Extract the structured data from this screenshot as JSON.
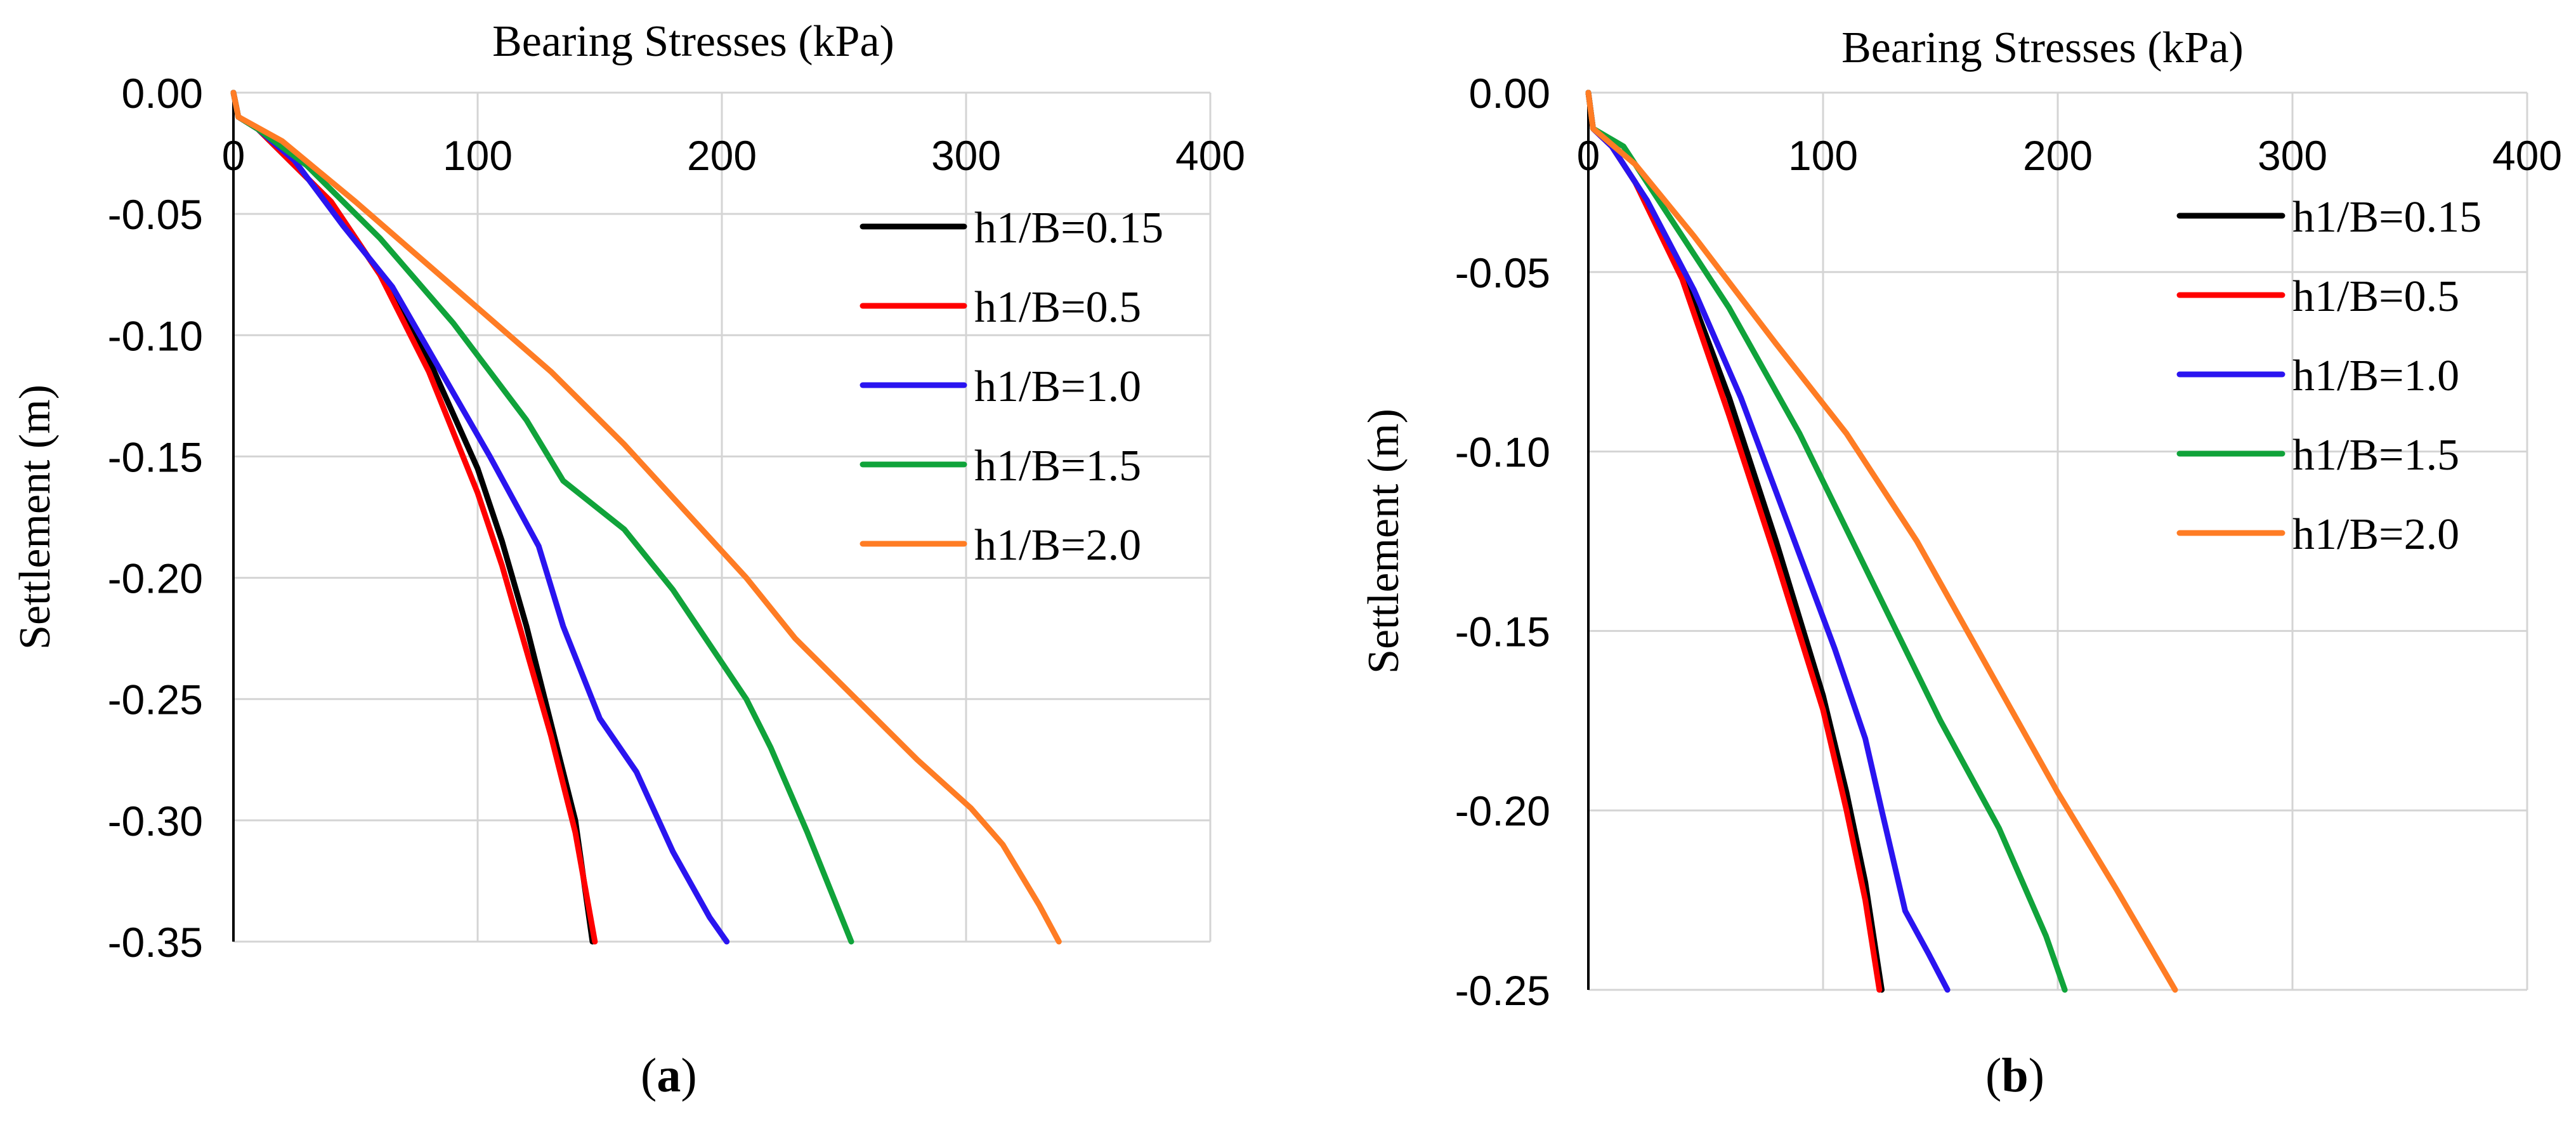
{
  "colors": {
    "h1/B=0.15": "#000000",
    "h1/B=0.5": "#ff0000",
    "h1/B=1.0": "#2a14f0",
    "h1/B=1.5": "#10a33a",
    "h1/B=2.0": "#ff7c24"
  },
  "chart_data": [
    {
      "type": "line",
      "panel_label": "a",
      "title": "Bearing Stresses (kPa)",
      "xlabel": "Bearing Stresses (kPa)",
      "ylabel": "Settlement (m)",
      "xlim": [
        0,
        400
      ],
      "ylim": [
        -0.35,
        0.0
      ],
      "x_ticks": [
        0,
        100,
        200,
        300,
        400
      ],
      "y_ticks": [
        0.0,
        -0.05,
        -0.1,
        -0.15,
        -0.2,
        -0.25,
        -0.3,
        -0.35
      ],
      "x_tick_labels": [
        "0",
        "100",
        "200",
        "300",
        "400"
      ],
      "y_tick_labels": [
        "0.00",
        "-0.05",
        "-0.10",
        "-0.15",
        "-0.20",
        "-0.25",
        "-0.30",
        "-0.35"
      ],
      "grid": true,
      "legend_position": "top-right",
      "series": [
        {
          "name": "h1/B=0.15",
          "points": [
            [
              0,
              0
            ],
            [
              1,
              -0.005
            ],
            [
              2,
              -0.01
            ],
            [
              10,
              -0.015
            ],
            [
              20,
              -0.025
            ],
            [
              40,
              -0.045
            ],
            [
              60,
              -0.075
            ],
            [
              80,
              -0.11
            ],
            [
              100,
              -0.155
            ],
            [
              110,
              -0.185
            ],
            [
              120,
              -0.22
            ],
            [
              130,
              -0.26
            ],
            [
              140,
              -0.3
            ],
            [
              147,
              -0.35
            ]
          ]
        },
        {
          "name": "h1/B=0.5",
          "points": [
            [
              0,
              0
            ],
            [
              1,
              -0.005
            ],
            [
              2,
              -0.01
            ],
            [
              10,
              -0.015
            ],
            [
              20,
              -0.025
            ],
            [
              40,
              -0.045
            ],
            [
              60,
              -0.075
            ],
            [
              80,
              -0.115
            ],
            [
              100,
              -0.165
            ],
            [
              110,
              -0.195
            ],
            [
              120,
              -0.23
            ],
            [
              130,
              -0.265
            ],
            [
              140,
              -0.305
            ],
            [
              148,
              -0.35
            ]
          ]
        },
        {
          "name": "h1/B=1.0",
          "points": [
            [
              0,
              0
            ],
            [
              1,
              -0.005
            ],
            [
              2,
              -0.01
            ],
            [
              10,
              -0.015
            ],
            [
              25,
              -0.028
            ],
            [
              45,
              -0.055
            ],
            [
              65,
              -0.08
            ],
            [
              85,
              -0.115
            ],
            [
              105,
              -0.15
            ],
            [
              125,
              -0.187
            ],
            [
              135,
              -0.22
            ],
            [
              150,
              -0.258
            ],
            [
              165,
              -0.28
            ],
            [
              180,
              -0.313
            ],
            [
              195,
              -0.34
            ],
            [
              202,
              -0.35
            ]
          ]
        },
        {
          "name": "h1/B=1.5",
          "points": [
            [
              0,
              0
            ],
            [
              1,
              -0.005
            ],
            [
              2,
              -0.01
            ],
            [
              10,
              -0.015
            ],
            [
              30,
              -0.03
            ],
            [
              60,
              -0.06
            ],
            [
              90,
              -0.095
            ],
            [
              120,
              -0.135
            ],
            [
              135,
              -0.16
            ],
            [
              160,
              -0.18
            ],
            [
              180,
              -0.205
            ],
            [
              200,
              -0.235
            ],
            [
              210,
              -0.25
            ],
            [
              220,
              -0.27
            ],
            [
              235,
              -0.305
            ],
            [
              253,
              -0.35
            ]
          ]
        },
        {
          "name": "h1/B=2.0",
          "points": [
            [
              0,
              0
            ],
            [
              1,
              -0.005
            ],
            [
              2,
              -0.01
            ],
            [
              20,
              -0.02
            ],
            [
              50,
              -0.045
            ],
            [
              90,
              -0.08
            ],
            [
              130,
              -0.115
            ],
            [
              160,
              -0.145
            ],
            [
              190,
              -0.178
            ],
            [
              210,
              -0.2
            ],
            [
              230,
              -0.225
            ],
            [
              255,
              -0.25
            ],
            [
              280,
              -0.275
            ],
            [
              302,
              -0.295
            ],
            [
              315,
              -0.31
            ],
            [
              330,
              -0.335
            ],
            [
              338,
              -0.35
            ]
          ]
        }
      ]
    },
    {
      "type": "line",
      "panel_label": "b",
      "title": "Bearing Stresses (kPa)",
      "xlabel": "Bearing Stresses (kPa)",
      "ylabel": "Settlement (m)",
      "xlim": [
        0,
        400
      ],
      "ylim": [
        -0.25,
        0.0
      ],
      "x_ticks": [
        0,
        100,
        200,
        300,
        400
      ],
      "y_ticks": [
        0.0,
        -0.05,
        -0.1,
        -0.15,
        -0.2,
        -0.25
      ],
      "x_tick_labels": [
        "0",
        "100",
        "200",
        "300",
        "400"
      ],
      "y_tick_labels": [
        "0.00",
        "-0.05",
        "-0.10",
        "-0.15",
        "-0.20",
        "-0.25"
      ],
      "grid": true,
      "legend_position": "top-right",
      "series": [
        {
          "name": "h1/B=0.15",
          "points": [
            [
              0,
              0
            ],
            [
              1,
              -0.005
            ],
            [
              2,
              -0.01
            ],
            [
              10,
              -0.015
            ],
            [
              20,
              -0.025
            ],
            [
              40,
              -0.05
            ],
            [
              60,
              -0.085
            ],
            [
              80,
              -0.125
            ],
            [
              100,
              -0.168
            ],
            [
              110,
              -0.195
            ],
            [
              118,
              -0.22
            ],
            [
              125,
              -0.25
            ]
          ]
        },
        {
          "name": "h1/B=0.5",
          "points": [
            [
              0,
              0
            ],
            [
              1,
              -0.005
            ],
            [
              2,
              -0.01
            ],
            [
              10,
              -0.015
            ],
            [
              20,
              -0.025
            ],
            [
              40,
              -0.052
            ],
            [
              60,
              -0.09
            ],
            [
              80,
              -0.13
            ],
            [
              100,
              -0.172
            ],
            [
              110,
              -0.2
            ],
            [
              118,
              -0.225
            ],
            [
              124,
              -0.25
            ]
          ]
        },
        {
          "name": "h1/B=1.0",
          "points": [
            [
              0,
              0
            ],
            [
              1,
              -0.005
            ],
            [
              2,
              -0.01
            ],
            [
              10,
              -0.015
            ],
            [
              25,
              -0.03
            ],
            [
              45,
              -0.055
            ],
            [
              65,
              -0.085
            ],
            [
              85,
              -0.12
            ],
            [
              105,
              -0.155
            ],
            [
              118,
              -0.18
            ],
            [
              125,
              -0.2
            ],
            [
              135,
              -0.228
            ],
            [
              145,
              -0.24
            ],
            [
              153,
              -0.25
            ]
          ]
        },
        {
          "name": "h1/B=1.5",
          "points": [
            [
              0,
              0
            ],
            [
              1,
              -0.005
            ],
            [
              2,
              -0.01
            ],
            [
              15,
              -0.015
            ],
            [
              35,
              -0.035
            ],
            [
              60,
              -0.06
            ],
            [
              90,
              -0.095
            ],
            [
              120,
              -0.135
            ],
            [
              150,
              -0.175
            ],
            [
              175,
              -0.205
            ],
            [
              195,
              -0.235
            ],
            [
              203,
              -0.25
            ]
          ]
        },
        {
          "name": "h1/B=2.0",
          "points": [
            [
              0,
              0
            ],
            [
              1,
              -0.005
            ],
            [
              2,
              -0.01
            ],
            [
              20,
              -0.02
            ],
            [
              45,
              -0.04
            ],
            [
              80,
              -0.07
            ],
            [
              110,
              -0.095
            ],
            [
              140,
              -0.125
            ],
            [
              170,
              -0.16
            ],
            [
              200,
              -0.195
            ],
            [
              225,
              -0.222
            ],
            [
              250,
              -0.25
            ]
          ]
        }
      ]
    }
  ]
}
